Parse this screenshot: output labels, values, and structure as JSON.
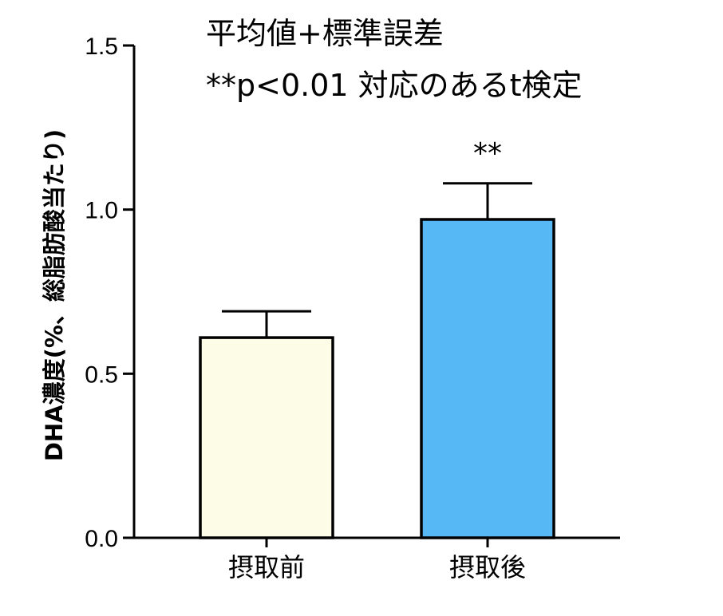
{
  "chart_data": {
    "type": "bar",
    "categories": [
      "摂取前",
      "摂取後"
    ],
    "values": [
      0.61,
      0.97
    ],
    "errors": [
      0.08,
      0.11
    ],
    "bar_colors": [
      "#fdfce6",
      "#56b9f6"
    ],
    "significance": [
      "",
      "**"
    ],
    "ylabel": "DHA濃度(%、総脂肪酸当たり)",
    "ylim": [
      0,
      1.5
    ],
    "yticks": [
      "0.0",
      "0.5",
      "1.0",
      "1.5"
    ],
    "annotations": [
      "平均値+標準誤差",
      "**p<0.01 対応のあるt検定"
    ],
    "grid": false,
    "legend": "none"
  }
}
